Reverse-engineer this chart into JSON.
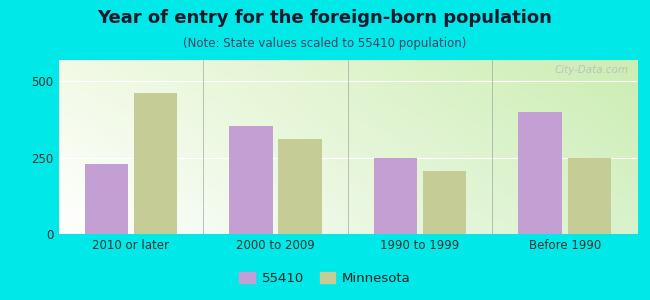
{
  "title": "Year of entry for the foreign-born population",
  "subtitle": "(Note: State values scaled to 55410 population)",
  "categories": [
    "2010 or later",
    "2000 to 2009",
    "1990 to 1999",
    "Before 1990"
  ],
  "values_55410": [
    230,
    355,
    248,
    400
  ],
  "values_minnesota": [
    463,
    310,
    208,
    248
  ],
  "color_55410": "#c39fd4",
  "color_minnesota": "#c5cc96",
  "background_color": "#00e8e8",
  "ylim": [
    0,
    570
  ],
  "yticks": [
    0,
    250,
    500
  ],
  "bar_width": 0.3,
  "legend_label_55410": "55410",
  "legend_label_minnesota": "Minnesota",
  "watermark": "City-Data.com",
  "title_fontsize": 13,
  "subtitle_fontsize": 8.5,
  "tick_fontsize": 8.5,
  "title_color": "#1a1a2e",
  "subtitle_color": "#444466"
}
